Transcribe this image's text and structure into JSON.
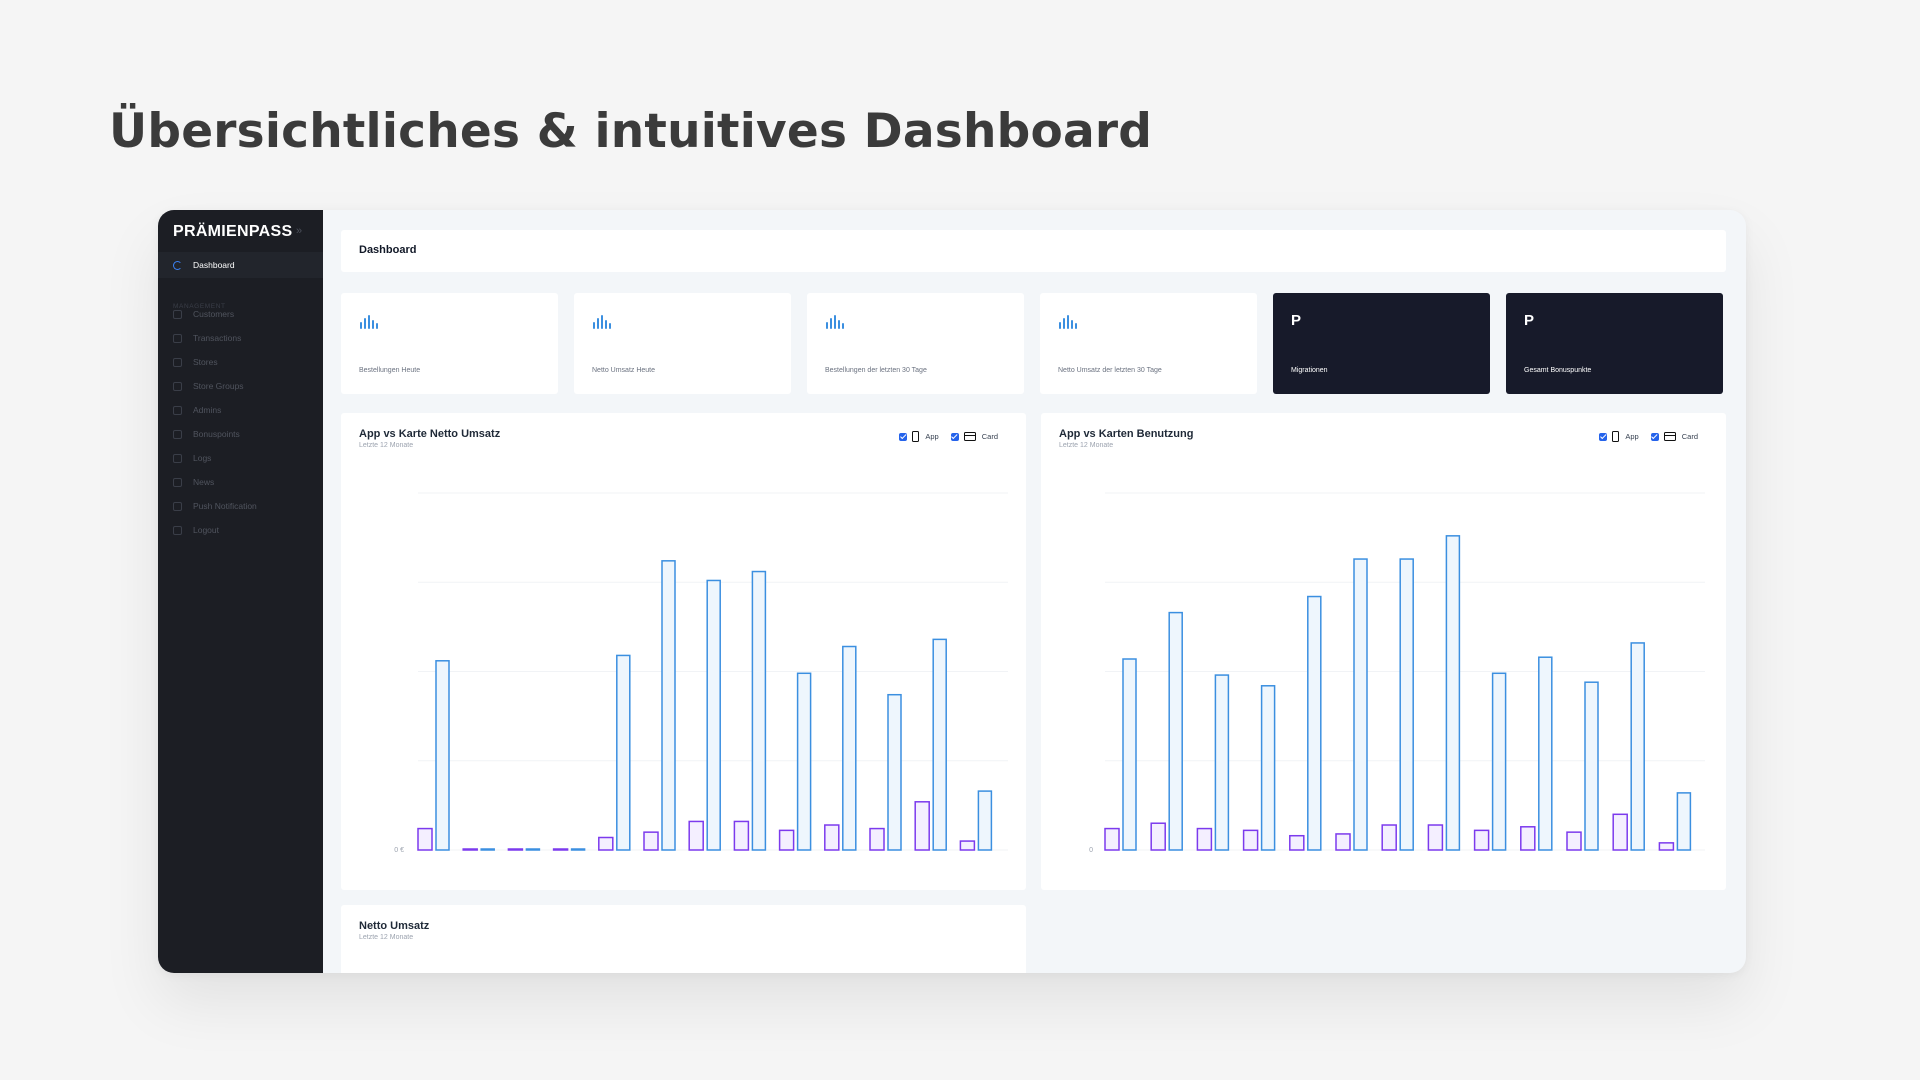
{
  "headline": "Übersichtliches & intuitives Dashboard",
  "sidebar": {
    "brand": "PRÄMIENPASS",
    "toggle_icon": "»",
    "dashboard": "Dashboard",
    "section_label": "MANAGEMENT",
    "items": [
      {
        "label": "Customers",
        "icon": "users-icon"
      },
      {
        "label": "Transactions",
        "icon": "cart-icon"
      },
      {
        "label": "Stores",
        "icon": "store-icon"
      },
      {
        "label": "Store Groups",
        "icon": "store-group-icon"
      },
      {
        "label": "Admins",
        "icon": "admin-icon"
      },
      {
        "label": "Bonuspoints",
        "icon": "star-icon"
      },
      {
        "label": "Logs",
        "icon": "clock-icon"
      },
      {
        "label": "News",
        "icon": "news-icon"
      },
      {
        "label": "Push Notification",
        "icon": "bell-icon"
      },
      {
        "label": "Logout",
        "icon": "logout-icon"
      }
    ]
  },
  "topbar": {
    "title": "Dashboard"
  },
  "stats": [
    {
      "label": "Bestellungen Heute",
      "style": "light",
      "icon": "bar-chart-icon"
    },
    {
      "label": "Netto Umsatz Heute",
      "style": "light",
      "icon": "bar-chart-icon"
    },
    {
      "label": "Bestellungen der letzten 30 Tage",
      "style": "light",
      "icon": "bar-chart-icon"
    },
    {
      "label": "Netto Umsatz der letzten 30 Tage",
      "style": "light",
      "icon": "bar-chart-icon"
    },
    {
      "label": "Migrationen",
      "style": "dark",
      "glyph": "P"
    },
    {
      "label": "Gesamt Bonuspunkte",
      "style": "dark",
      "glyph": "P"
    }
  ],
  "legend": {
    "app": "App",
    "card": "Card"
  },
  "colors": {
    "app": "#7c3aed",
    "card": "#3b8fe0",
    "accent": "#2563eb",
    "sidebar": "#1c1e24"
  },
  "chart_data": [
    {
      "type": "bar",
      "title": "App vs Karte Netto Umsatz",
      "subtitle": "Letzte 12 Monate",
      "ylim": [
        0,
        100
      ],
      "y_tick_label": "0 €",
      "grid": true,
      "legend_placement": "top-right",
      "series": [
        {
          "name": "App",
          "values": [
            6,
            0,
            0,
            0,
            3.5,
            5,
            8,
            8,
            5.5,
            7,
            6,
            13.5,
            2.5
          ]
        },
        {
          "name": "Card",
          "values": [
            53,
            0,
            0,
            0,
            54.5,
            81,
            75.5,
            78,
            49.5,
            57,
            43.5,
            59,
            16.5
          ]
        }
      ]
    },
    {
      "type": "bar",
      "title": "App vs Karten Benutzung",
      "subtitle": "Letzte 12 Monate",
      "ylim": [
        0,
        100
      ],
      "y_tick_label": "0",
      "grid": true,
      "legend_placement": "top-right",
      "series": [
        {
          "name": "App",
          "values": [
            6,
            7.5,
            6,
            5.5,
            4,
            4.5,
            7,
            7,
            5.5,
            6.5,
            5,
            10,
            2
          ]
        },
        {
          "name": "Card",
          "values": [
            53.5,
            66.5,
            49,
            46,
            71,
            81.5,
            81.5,
            88,
            49.5,
            54,
            47,
            58,
            16
          ]
        }
      ]
    },
    {
      "type": "line",
      "title": "Netto Umsatz",
      "subtitle": "Letzte 12 Monate"
    }
  ]
}
